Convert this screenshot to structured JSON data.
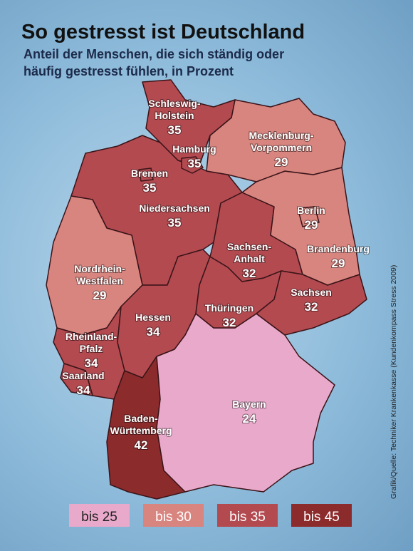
{
  "title": "So gestresst ist Deutschland",
  "subtitle": [
    "Anteil der Menschen, die sich ständig oder",
    "häufig gestresst fühlen, in Prozent"
  ],
  "regions": [
    {
      "name": [
        "Schleswig-",
        "Holstein"
      ],
      "value": 35
    },
    {
      "name": [
        "Mecklenburg-",
        "Vorpommern"
      ],
      "value": 29
    },
    {
      "name": [
        "Hamburg"
      ],
      "value": 35
    },
    {
      "name": [
        "Bremen"
      ],
      "value": 35
    },
    {
      "name": [
        "Niedersachsen"
      ],
      "value": 35
    },
    {
      "name": [
        "Berlin"
      ],
      "value": 29
    },
    {
      "name": [
        "Brandenburg"
      ],
      "value": 29
    },
    {
      "name": [
        "Sachsen-",
        "Anhalt"
      ],
      "value": 32
    },
    {
      "name": [
        "Nordrhein-",
        "Westfalen"
      ],
      "value": 29
    },
    {
      "name": [
        "Hessen"
      ],
      "value": 34
    },
    {
      "name": [
        "Thüringen"
      ],
      "value": 32
    },
    {
      "name": [
        "Sachsen"
      ],
      "value": 32
    },
    {
      "name": [
        "Rheinland-",
        "Pfalz"
      ],
      "value": 34
    },
    {
      "name": [
        "Saarland"
      ],
      "value": 34
    },
    {
      "name": [
        "Bayern"
      ],
      "value": 24
    },
    {
      "name": [
        "Baden-",
        "Württemberg"
      ],
      "value": 42
    }
  ],
  "legend": [
    {
      "value": 25,
      "label": "bis 25",
      "color": "#e9a9cb"
    },
    {
      "value": 30,
      "label": "bis 30",
      "color": "#d8847f"
    },
    {
      "value": 35,
      "label": "bis 35",
      "color": "#b24a50"
    },
    {
      "value": 45,
      "label": "bis 45",
      "color": "#8c2b2c"
    }
  ],
  "source": "Grafik/Quelle: Techniker Krankenkasse (Kundenkompass Stress 2009)"
}
